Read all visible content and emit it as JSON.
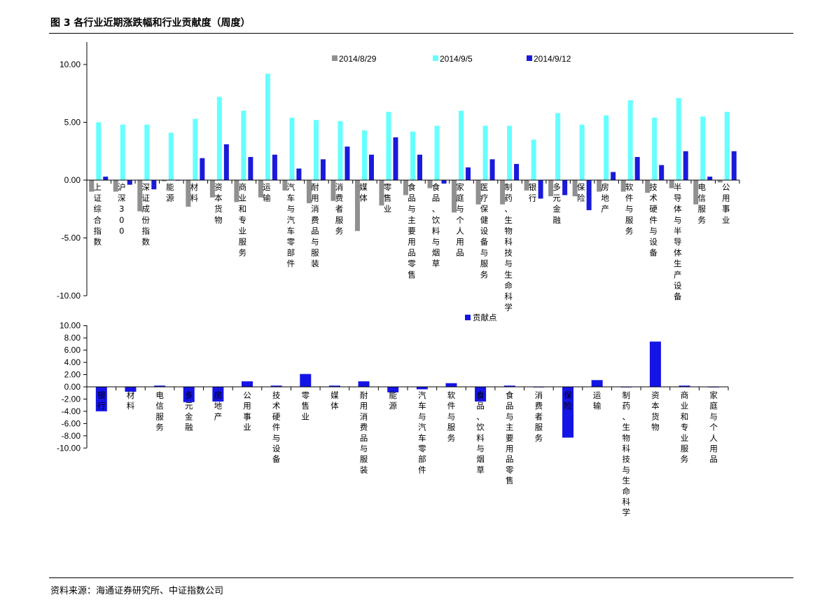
{
  "figure": {
    "title": "图 3 各行业近期涨跌幅和行业贡献度（周度）",
    "source": "资料来源：海通证券研究所、中证指数公司"
  },
  "colors": {
    "s1": "#909090",
    "s2": "#66ffff",
    "s3": "#1a1adb",
    "contrib": "#1414e6"
  },
  "chart_data": [
    {
      "type": "bar",
      "categories": [
        "上证综合指数",
        "沪深300",
        "深证成份指数",
        "能源",
        "材料",
        "资本货物",
        "商业和专业服务",
        "运输",
        "汽车与汽车零部件",
        "耐用消费品与服装",
        "消费者服务",
        "媒体",
        "零售业",
        "食品与主要用品零售",
        "食品、饮料与烟草",
        "家庭与个人用品",
        "医疗保健设备与服务",
        "制药、生物科技与生命科学",
        "银行",
        "多元金融",
        "保险",
        "房地产",
        "软件与服务",
        "技术硬件与设备",
        "半导体与半导体生产设备",
        "电信服务",
        "公用事业"
      ],
      "series": [
        {
          "name": "2014/8/29",
          "values": [
            -1.0,
            -1.0,
            -2.7,
            -0.1,
            -2.3,
            -1.5,
            -1.9,
            -1.5,
            -0.9,
            -2.0,
            -1.8,
            -4.4,
            -2.2,
            -1.3,
            -0.7,
            -2.8,
            -2.1,
            -2.1,
            -0.9,
            -1.4,
            -1.4,
            -1.0,
            -1.0,
            -1.1,
            -0.7,
            -2.1,
            -0.2
          ]
        },
        {
          "name": "2014/9/5",
          "values": [
            5.0,
            4.8,
            4.8,
            4.1,
            5.3,
            7.2,
            6.0,
            9.2,
            5.4,
            5.2,
            5.1,
            4.3,
            5.9,
            4.2,
            4.7,
            6.0,
            4.7,
            4.7,
            3.5,
            5.8,
            4.8,
            5.6,
            6.9,
            5.4,
            7.1,
            5.5,
            5.9
          ]
        },
        {
          "name": "2014/9/12",
          "values": [
            0.3,
            -0.4,
            -0.8,
            0.0,
            1.9,
            3.1,
            2.0,
            2.2,
            1.0,
            1.8,
            2.9,
            2.2,
            3.7,
            2.2,
            -0.3,
            1.1,
            1.8,
            1.4,
            -1.6,
            -1.3,
            -2.6,
            0.7,
            2.0,
            1.3,
            2.5,
            0.3,
            2.5
          ]
        }
      ],
      "yticks": [
        "10.00",
        "5.00",
        "0.00",
        "-5.00",
        "-10.00"
      ],
      "ylim": [
        -10,
        12
      ],
      "legend_position": "top"
    },
    {
      "type": "bar",
      "categories": [
        "银行",
        "材料",
        "电信服务",
        "多元金融",
        "房地产",
        "公用事业",
        "技术硬件与设备",
        "零售业",
        "媒体",
        "耐用消费品与服装",
        "能源",
        "汽车与汽车零部件",
        "软件与服务",
        "食品、饮料与烟草",
        "食品与主要用品零售",
        "消费者服务",
        "保险",
        "运输",
        "制药、生物科技与生命科学",
        "资本货物",
        "商业和专业服务",
        "家庭与个人用品"
      ],
      "series": [
        {
          "name": "贡献点",
          "values": [
            -4.0,
            -0.8,
            0.2,
            -2.5,
            -2.4,
            0.9,
            0.2,
            2.1,
            0.2,
            0.9,
            -0.9,
            -0.4,
            0.6,
            -2.4,
            0.2,
            0.0,
            -8.3,
            1.1,
            0.0,
            7.4,
            0.2,
            0.0
          ]
        }
      ],
      "yticks": [
        "10.00",
        "8.00",
        "6.00",
        "4.00",
        "2.00",
        "0.00",
        "-2.00",
        "-4.00",
        "-6.00",
        "-8.00",
        "-10.00"
      ],
      "ylim": [
        -10,
        10
      ],
      "legend_position": "top"
    }
  ]
}
